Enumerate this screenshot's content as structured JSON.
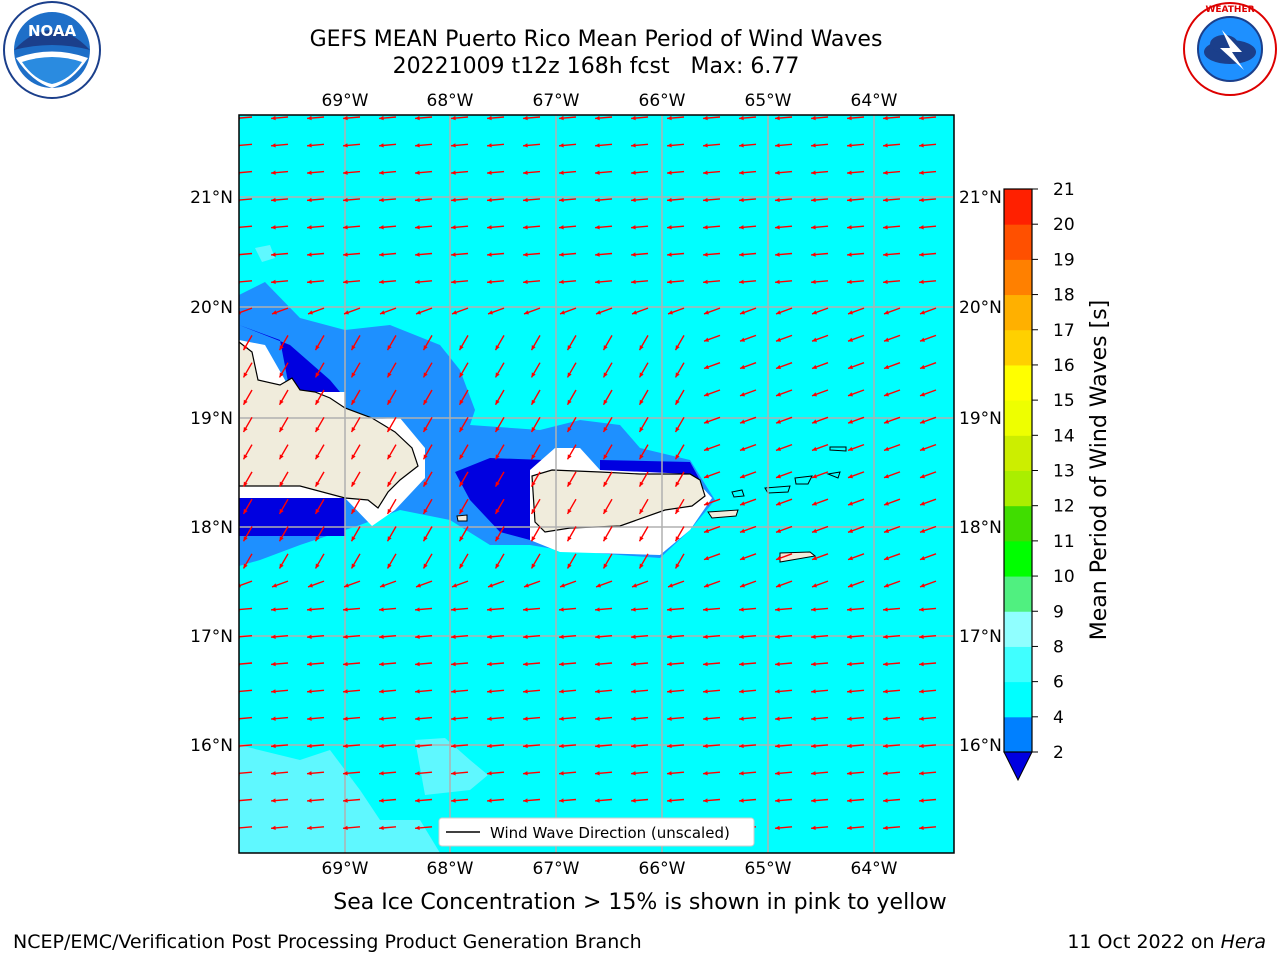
{
  "title": {
    "line1": "GEFS MEAN Puerto Rico Mean Period of Wind Waves",
    "line2": "20221009 t12z 168h fcst   Max: 6.77"
  },
  "note": "Sea Ice Concentration > 15% is shown in pink to yellow",
  "footer": {
    "left": "NCEP/EMC/Verification Post Processing Product Generation Branch",
    "date": "11 Oct 2022 on ",
    "host": "Hera"
  },
  "logos": {
    "noaa_text": "NOAA",
    "noaa_ring": "NATIONAL OCEANIC AND ATMOSPHERIC ADMINISTRATION · U.S. DEPARTMENT OF COMMERCE",
    "nws_ring": "NATIONAL WEATHER SERVICE"
  },
  "legend": {
    "label": "Wind Wave Direction (unscaled)"
  },
  "colorbar": {
    "label": "Mean Period of Wind Waves [s]",
    "ticks": [
      "2",
      "4",
      "6",
      "8",
      "9",
      "10",
      "11",
      "12",
      "13",
      "14",
      "15",
      "16",
      "17",
      "18",
      "19",
      "20",
      "21"
    ],
    "colors": [
      "#0000e0",
      "#0080ff",
      "#00ffff",
      "#40ffff",
      "#90ffff",
      "#50f080",
      "#00ff00",
      "#40dd00",
      "#aaee00",
      "#ccee00",
      "#eeff00",
      "#ffff00",
      "#ffd000",
      "#ffb000",
      "#ff8000",
      "#ff5000",
      "#ff2000",
      "#ff0000"
    ]
  },
  "axes": {
    "lon_ticks": [
      "69°W",
      "68°W",
      "67°W",
      "66°W",
      "65°W",
      "64°W"
    ],
    "lat_ticks": [
      "21°N",
      "20°N",
      "19°N",
      "18°N",
      "17°N",
      "16°N"
    ]
  },
  "colors": {
    "ocean": "#00ffff",
    "land": "#f0ecdc",
    "arrow": "#ff0000",
    "deep": "#0000e0",
    "mid": "#1e90ff",
    "light": "#5ff8ff"
  }
}
